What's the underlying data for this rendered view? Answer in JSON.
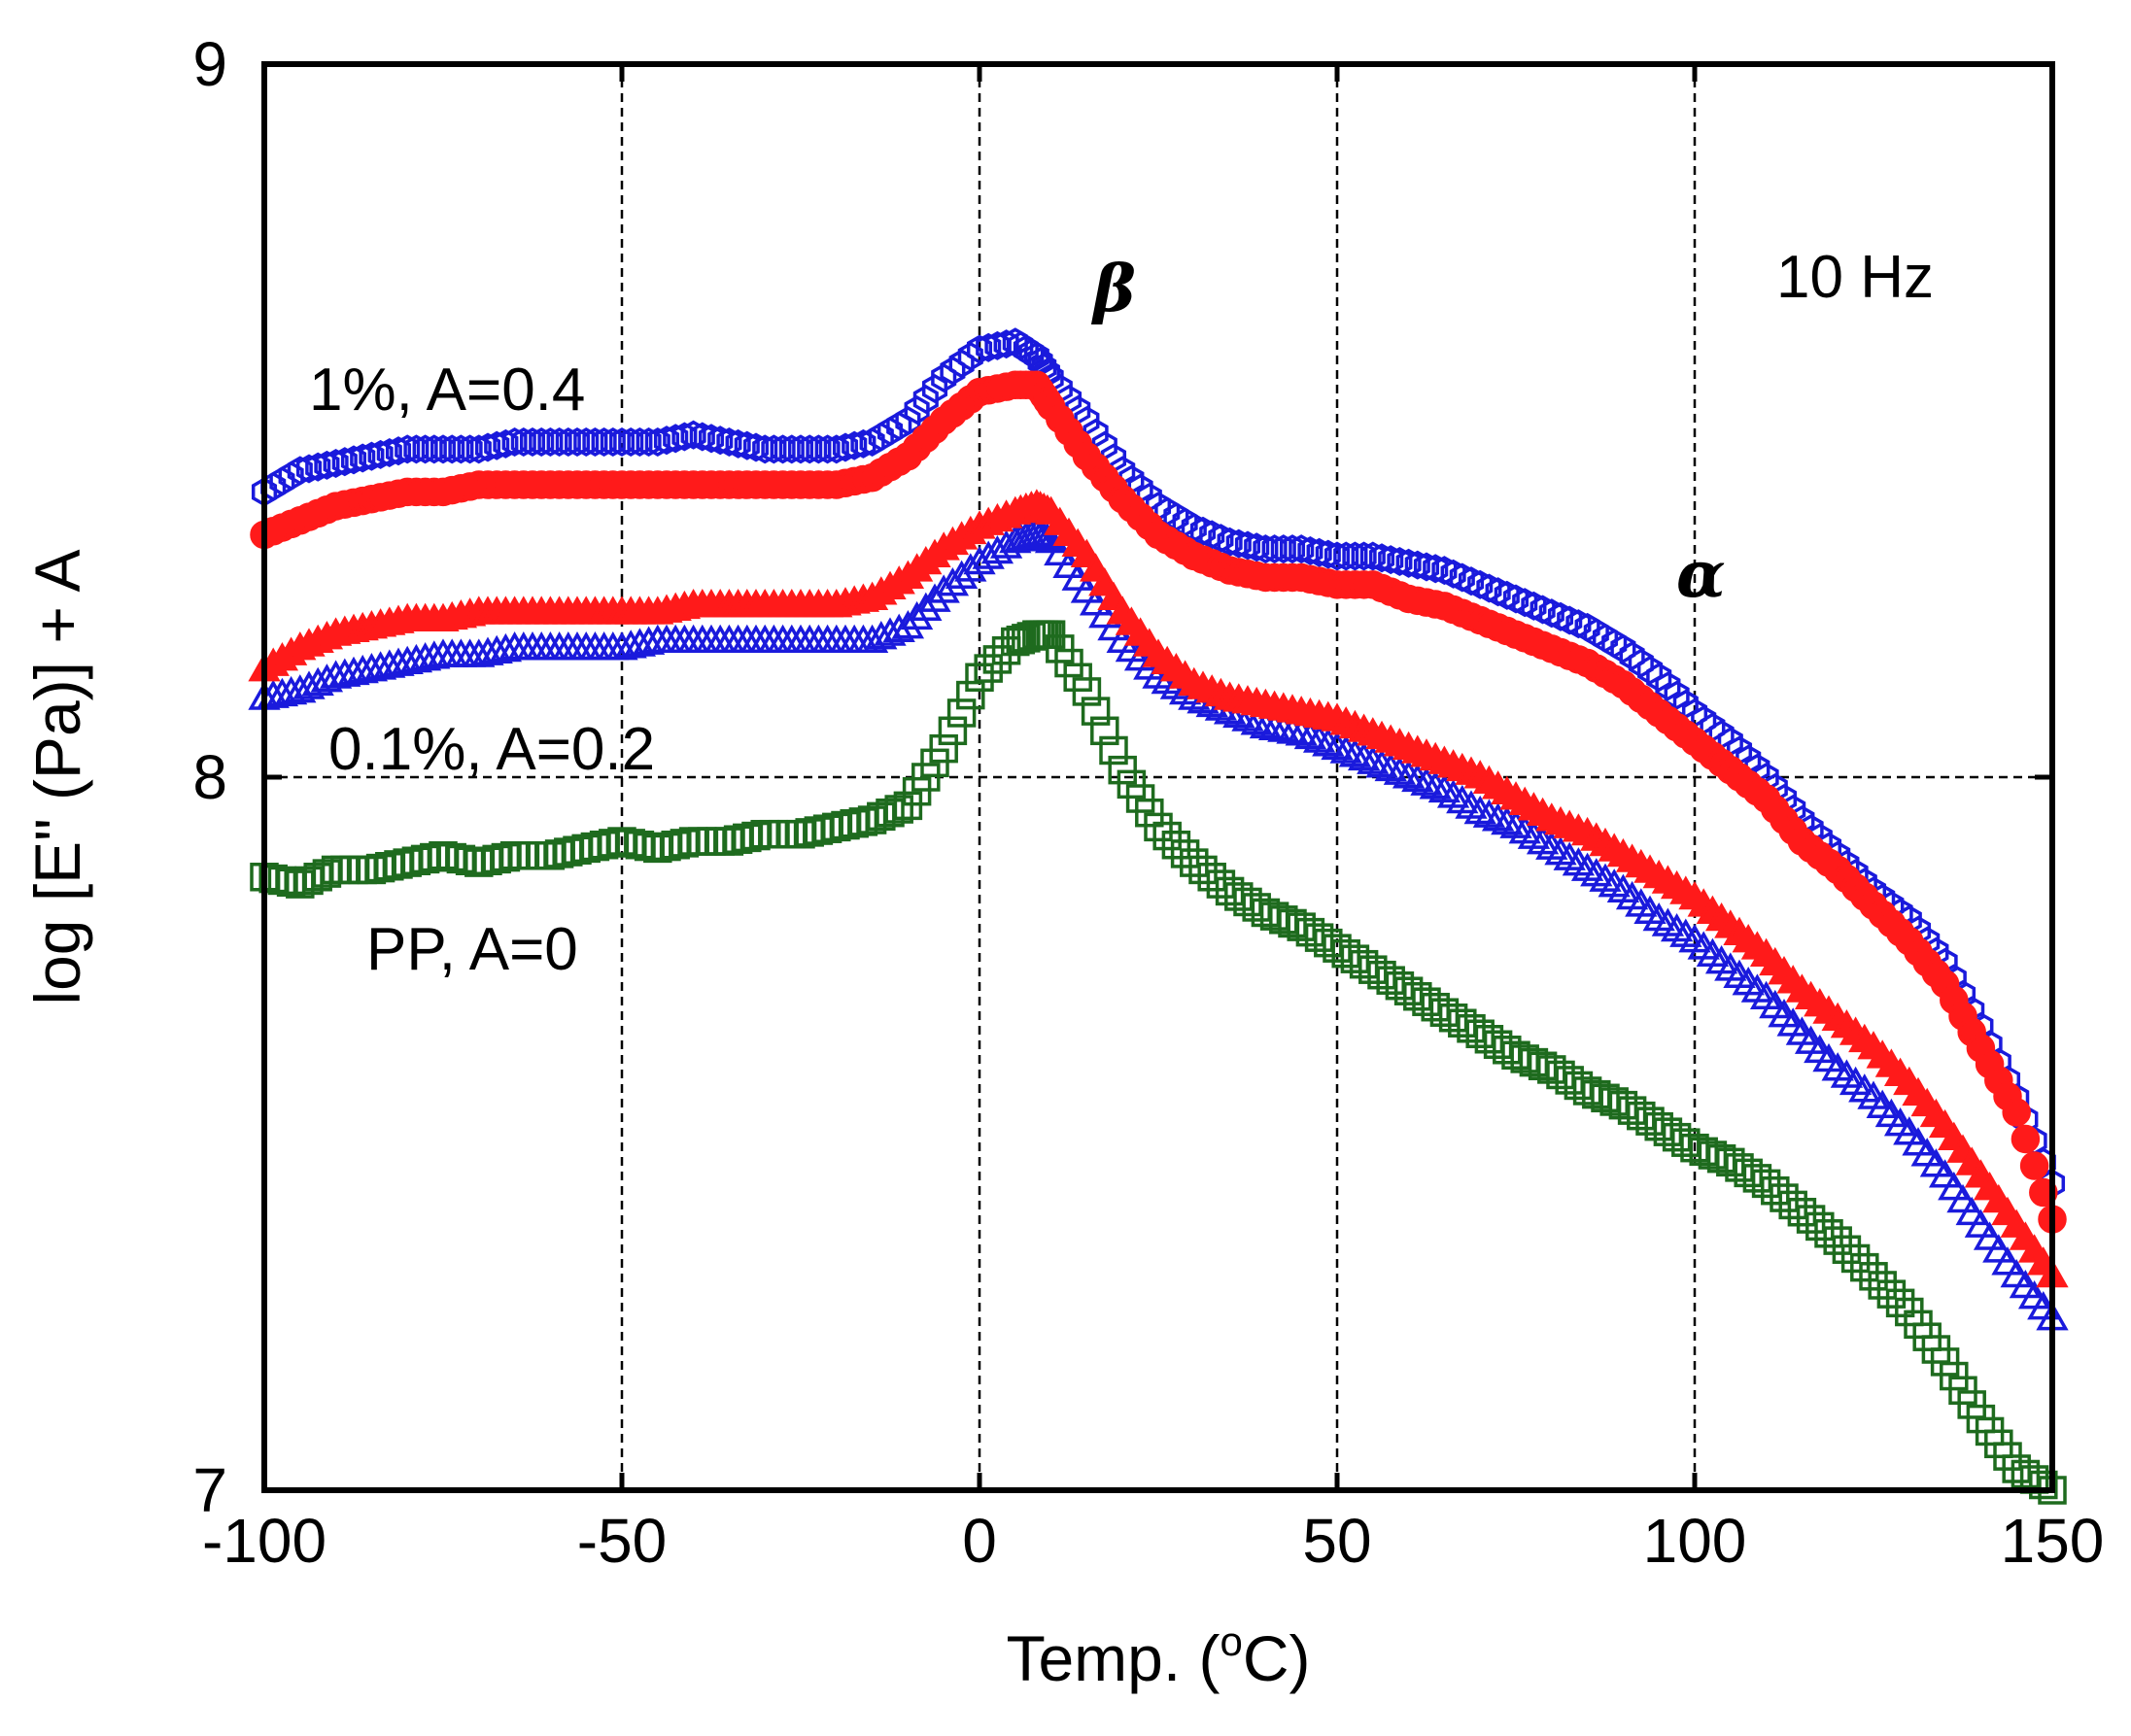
{
  "chart_data": {
    "type": "scatter",
    "title": "",
    "xlabel": "Temp. (",
    "xlabel_sup": "o",
    "xlabel_end": "C)",
    "ylabel": "log [E\" (Pa)] + A",
    "xlim": [
      -100,
      150
    ],
    "ylim": [
      7,
      9
    ],
    "xticks": [
      -100,
      -50,
      0,
      50,
      100,
      150
    ],
    "xtick_labels": [
      "-100",
      "-50",
      "0",
      "50",
      "100",
      "150"
    ],
    "yticks": [
      7,
      8,
      9
    ],
    "ytick_labels": [
      "7",
      "8",
      "9"
    ],
    "grid": true,
    "annotations": {
      "frequency": "10 Hz",
      "beta_peak": "β",
      "alpha_peak": "α",
      "label_1pct": "1%, A=0.4",
      "label_01pct": "0.1%, A=0.2",
      "label_pp": "PP, A=0"
    },
    "series": [
      {
        "name": "1%, A=0.4 (open circle)",
        "marker": "hexagon-open",
        "color": "#1a1adc",
        "x": [
          -100,
          -95,
          -90,
          -85,
          -80,
          -75,
          -70,
          -65,
          -60,
          -55,
          -50,
          -45,
          -40,
          -35,
          -30,
          -25,
          -20,
          -15,
          -10,
          -5,
          0,
          5,
          8,
          10,
          15,
          20,
          25,
          30,
          35,
          40,
          45,
          50,
          55,
          60,
          65,
          70,
          75,
          80,
          85,
          90,
          95,
          100,
          105,
          110,
          115,
          120,
          125,
          130,
          135,
          140,
          145,
          150
        ],
        "values": [
          8.4,
          8.43,
          8.44,
          8.45,
          8.46,
          8.46,
          8.46,
          8.47,
          8.47,
          8.47,
          8.47,
          8.47,
          8.48,
          8.47,
          8.46,
          8.46,
          8.46,
          8.47,
          8.5,
          8.56,
          8.6,
          8.61,
          8.59,
          8.56,
          8.5,
          8.43,
          8.38,
          8.35,
          8.33,
          8.32,
          8.32,
          8.31,
          8.31,
          8.3,
          8.29,
          8.27,
          8.25,
          8.23,
          8.21,
          8.18,
          8.14,
          8.09,
          8.05,
          8.0,
          7.94,
          7.89,
          7.84,
          7.8,
          7.74,
          7.65,
          7.55,
          7.43
        ]
      },
      {
        "name": "1%, A=0.4 (filled circle)",
        "marker": "circle-filled",
        "color": "#ff1a1a",
        "x": [
          -100,
          -95,
          -90,
          -85,
          -80,
          -75,
          -70,
          -65,
          -60,
          -55,
          -50,
          -45,
          -40,
          -35,
          -30,
          -25,
          -20,
          -15,
          -10,
          -5,
          0,
          5,
          8,
          10,
          15,
          20,
          25,
          30,
          35,
          40,
          45,
          50,
          55,
          60,
          65,
          70,
          75,
          80,
          85,
          90,
          95,
          100,
          105,
          110,
          115,
          120,
          125,
          130,
          135,
          140,
          145,
          150
        ],
        "values": [
          8.34,
          8.36,
          8.38,
          8.39,
          8.4,
          8.4,
          8.41,
          8.41,
          8.41,
          8.41,
          8.41,
          8.41,
          8.41,
          8.41,
          8.41,
          8.41,
          8.41,
          8.42,
          8.45,
          8.5,
          8.54,
          8.55,
          8.55,
          8.52,
          8.45,
          8.39,
          8.34,
          8.31,
          8.29,
          8.28,
          8.28,
          8.27,
          8.27,
          8.25,
          8.24,
          8.22,
          8.2,
          8.18,
          8.16,
          8.13,
          8.09,
          8.05,
          8.01,
          7.97,
          7.91,
          7.87,
          7.82,
          7.77,
          7.71,
          7.62,
          7.53,
          7.38
        ]
      },
      {
        "name": "0.1%, A=0.2 (open triangle)",
        "marker": "triangle-open",
        "color": "#1a1adc",
        "x": [
          -100,
          -95,
          -90,
          -85,
          -80,
          -75,
          -70,
          -65,
          -60,
          -55,
          -50,
          -45,
          -40,
          -35,
          -30,
          -25,
          -20,
          -15,
          -10,
          -5,
          0,
          5,
          8,
          10,
          15,
          20,
          25,
          30,
          35,
          40,
          45,
          50,
          55,
          60,
          65,
          70,
          75,
          80,
          85,
          90,
          95,
          100,
          105,
          110,
          115,
          120,
          125,
          130,
          135,
          140,
          145,
          150
        ],
        "values": [
          8.11,
          8.12,
          8.14,
          8.15,
          8.16,
          8.17,
          8.17,
          8.18,
          8.18,
          8.18,
          8.18,
          8.19,
          8.19,
          8.19,
          8.19,
          8.19,
          8.19,
          8.19,
          8.21,
          8.26,
          8.3,
          8.33,
          8.34,
          8.33,
          8.26,
          8.19,
          8.14,
          8.11,
          8.09,
          8.07,
          8.06,
          8.04,
          8.02,
          8.0,
          7.98,
          7.95,
          7.93,
          7.9,
          7.87,
          7.84,
          7.8,
          7.77,
          7.73,
          7.69,
          7.64,
          7.59,
          7.55,
          7.5,
          7.44,
          7.37,
          7.3,
          7.24
        ]
      },
      {
        "name": "0.1%, A=0.2 (filled triangle)",
        "marker": "triangle-filled",
        "color": "#ff1a1a",
        "x": [
          -100,
          -95,
          -90,
          -85,
          -80,
          -75,
          -70,
          -65,
          -60,
          -55,
          -50,
          -45,
          -40,
          -35,
          -30,
          -25,
          -20,
          -15,
          -10,
          -5,
          0,
          5,
          8,
          10,
          15,
          20,
          25,
          30,
          35,
          40,
          45,
          50,
          55,
          60,
          65,
          70,
          75,
          80,
          85,
          90,
          95,
          100,
          105,
          110,
          115,
          120,
          125,
          130,
          135,
          140,
          145,
          150
        ],
        "values": [
          8.15,
          8.18,
          8.2,
          8.21,
          8.22,
          8.22,
          8.23,
          8.23,
          8.23,
          8.23,
          8.23,
          8.23,
          8.24,
          8.24,
          8.24,
          8.24,
          8.24,
          8.25,
          8.28,
          8.32,
          8.35,
          8.37,
          8.38,
          8.37,
          8.31,
          8.23,
          8.17,
          8.13,
          8.11,
          8.1,
          8.09,
          8.08,
          8.06,
          8.04,
          8.02,
          8.0,
          7.97,
          7.94,
          7.92,
          7.89,
          7.86,
          7.83,
          7.79,
          7.75,
          7.7,
          7.66,
          7.62,
          7.57,
          7.51,
          7.44,
          7.37,
          7.3
        ]
      },
      {
        "name": "PP, A=0 (open square)",
        "marker": "square-open",
        "color": "#1e6b1e",
        "x": [
          -100,
          -95,
          -90,
          -85,
          -80,
          -75,
          -70,
          -65,
          -60,
          -55,
          -50,
          -45,
          -40,
          -35,
          -30,
          -25,
          -20,
          -15,
          -10,
          -5,
          0,
          5,
          8,
          10,
          15,
          20,
          25,
          30,
          35,
          40,
          45,
          50,
          55,
          60,
          65,
          70,
          75,
          80,
          85,
          90,
          95,
          100,
          105,
          110,
          115,
          120,
          125,
          130,
          135,
          140,
          145,
          150
        ],
        "values": [
          7.86,
          7.85,
          7.87,
          7.87,
          7.88,
          7.89,
          7.88,
          7.89,
          7.89,
          7.9,
          7.91,
          7.9,
          7.91,
          7.91,
          7.92,
          7.92,
          7.93,
          7.94,
          7.96,
          8.04,
          8.14,
          8.19,
          8.2,
          8.2,
          8.12,
          8.01,
          7.93,
          7.88,
          7.84,
          7.81,
          7.79,
          7.76,
          7.73,
          7.7,
          7.67,
          7.64,
          7.61,
          7.59,
          7.56,
          7.54,
          7.51,
          7.48,
          7.46,
          7.43,
          7.39,
          7.35,
          7.3,
          7.25,
          7.18,
          7.1,
          7.03,
          7.0
        ]
      }
    ]
  }
}
